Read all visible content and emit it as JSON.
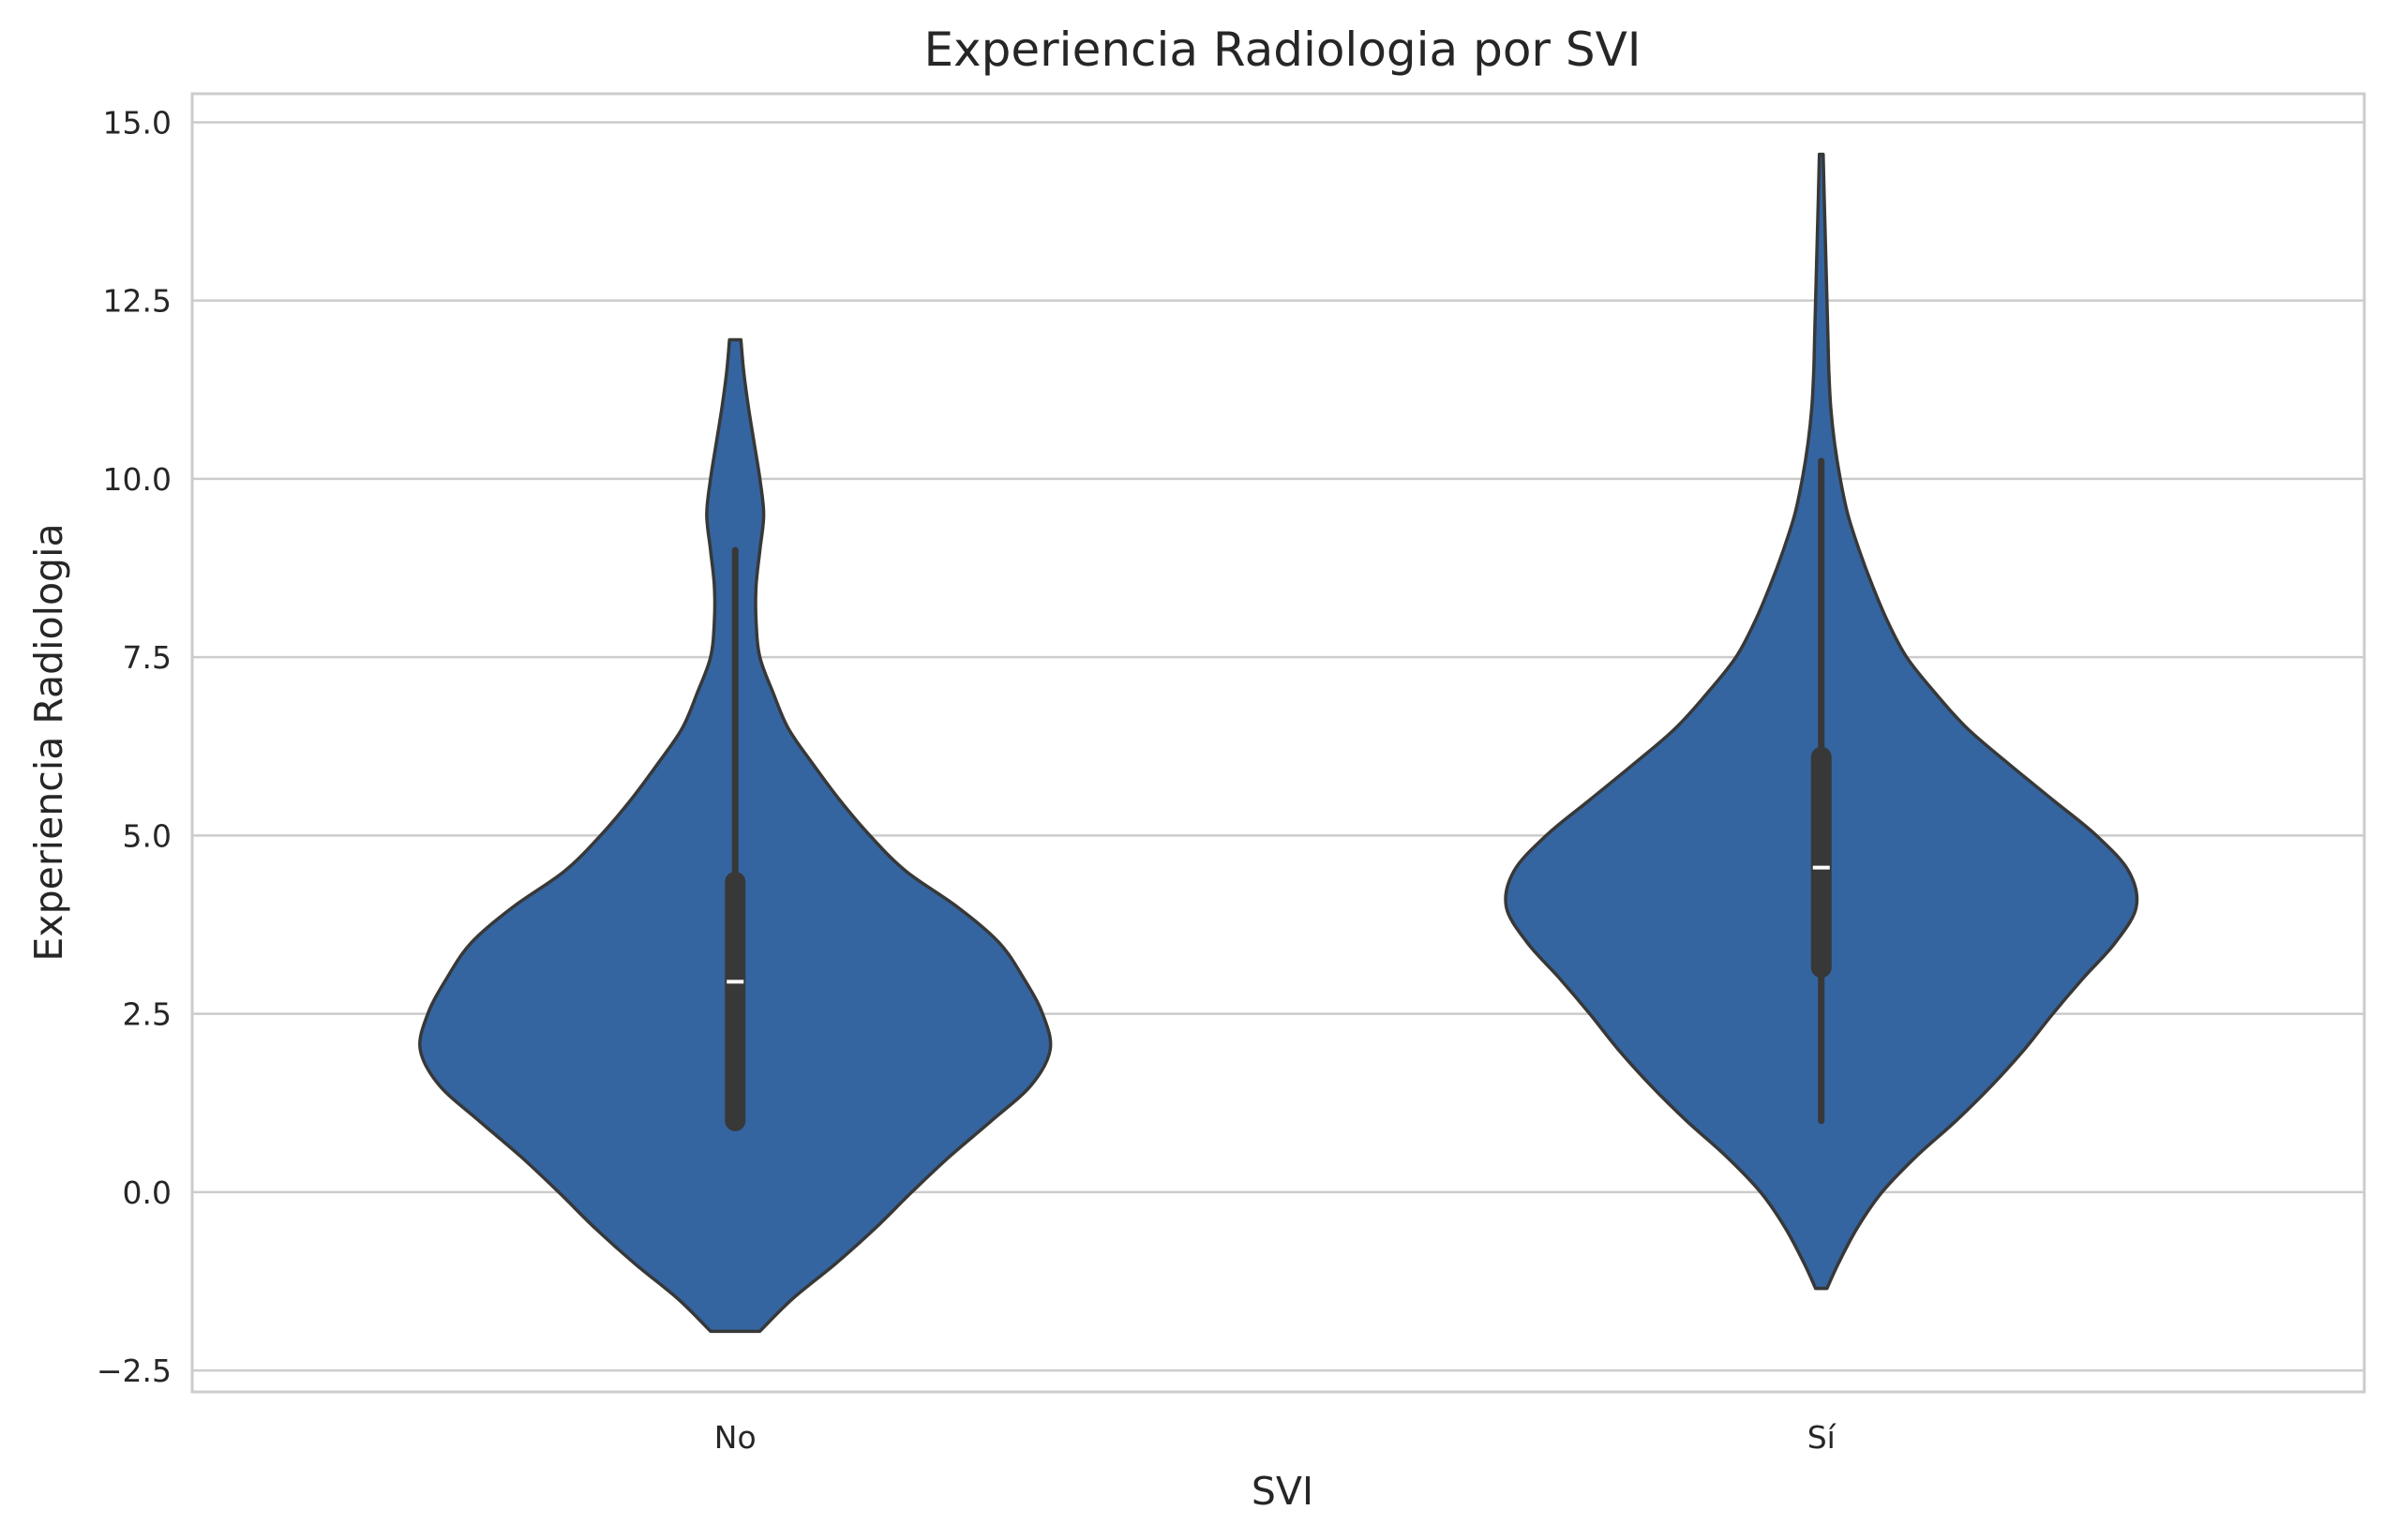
{
  "chart_data": {
    "type": "violin",
    "title": "Experiencia Radiologia por SVI",
    "xlabel": "SVI",
    "ylabel": "Experiencia Radiologia",
    "categories": [
      "No",
      "Sí"
    ],
    "ylim": [
      -2.8,
      15.4
    ],
    "yticks": [
      -2.5,
      0.0,
      2.5,
      5.0,
      7.5,
      10.0,
      12.5,
      15.0
    ],
    "ytick_labels": [
      "−2.5",
      "0.0",
      "2.5",
      "5.0",
      "7.5",
      "10.0",
      "12.5",
      "15.0"
    ],
    "grid": "horizontal",
    "legend": "none",
    "colors": {
      "fill": "#3465a0",
      "edge": "#383838",
      "box": "#383838",
      "median": "#ffffff",
      "grid": "#cccccc"
    },
    "violins": [
      {
        "category": "No",
        "min": -1.95,
        "max": 11.95,
        "profile": [
          [
            -1.95,
            0.13
          ],
          [
            -1.5,
            0.3
          ],
          [
            -1.0,
            0.53
          ],
          [
            -0.5,
            0.74
          ],
          [
            0.0,
            0.93
          ],
          [
            0.5,
            1.13
          ],
          [
            1.0,
            1.35
          ],
          [
            1.5,
            1.56
          ],
          [
            2.0,
            1.66
          ],
          [
            2.5,
            1.62
          ],
          [
            3.0,
            1.52
          ],
          [
            3.5,
            1.39
          ],
          [
            4.0,
            1.17
          ],
          [
            4.5,
            0.9
          ],
          [
            5.0,
            0.71
          ],
          [
            5.5,
            0.55
          ],
          [
            6.0,
            0.41
          ],
          [
            6.5,
            0.28
          ],
          [
            7.0,
            0.2
          ],
          [
            7.5,
            0.13
          ],
          [
            8.0,
            0.11
          ],
          [
            8.5,
            0.11
          ],
          [
            9.0,
            0.13
          ],
          [
            9.5,
            0.15
          ],
          [
            10.0,
            0.13
          ],
          [
            10.5,
            0.1
          ],
          [
            11.0,
            0.07
          ],
          [
            11.5,
            0.045
          ],
          [
            11.95,
            0.03
          ]
        ],
        "whisker_low": 1.0,
        "whisker_high": 9.0,
        "q1": 1.0,
        "q3": 4.35,
        "median": 2.95
      },
      {
        "category": "Sí",
        "min": -1.35,
        "max": 14.55,
        "profile": [
          [
            -1.35,
            0.03
          ],
          [
            -1.0,
            0.09
          ],
          [
            -0.5,
            0.19
          ],
          [
            0.0,
            0.32
          ],
          [
            0.5,
            0.5
          ],
          [
            1.0,
            0.71
          ],
          [
            1.5,
            0.9
          ],
          [
            2.0,
            1.07
          ],
          [
            2.5,
            1.22
          ],
          [
            3.0,
            1.38
          ],
          [
            3.5,
            1.55
          ],
          [
            4.0,
            1.66
          ],
          [
            4.5,
            1.62
          ],
          [
            5.0,
            1.45
          ],
          [
            5.5,
            1.22
          ],
          [
            6.0,
            0.99
          ],
          [
            6.5,
            0.77
          ],
          [
            7.0,
            0.6
          ],
          [
            7.5,
            0.45
          ],
          [
            8.0,
            0.35
          ],
          [
            8.5,
            0.27
          ],
          [
            9.0,
            0.2
          ],
          [
            9.5,
            0.14
          ],
          [
            10.0,
            0.1
          ],
          [
            10.5,
            0.07
          ],
          [
            11.0,
            0.05
          ],
          [
            11.5,
            0.04
          ],
          [
            12.0,
            0.035
          ],
          [
            12.5,
            0.03
          ],
          [
            13.0,
            0.025
          ],
          [
            13.5,
            0.02
          ],
          [
            14.0,
            0.015
          ],
          [
            14.55,
            0.01
          ]
        ],
        "whisker_low": 1.0,
        "whisker_high": 10.25,
        "q1": 3.15,
        "q3": 6.1,
        "median": 4.55
      }
    ]
  }
}
